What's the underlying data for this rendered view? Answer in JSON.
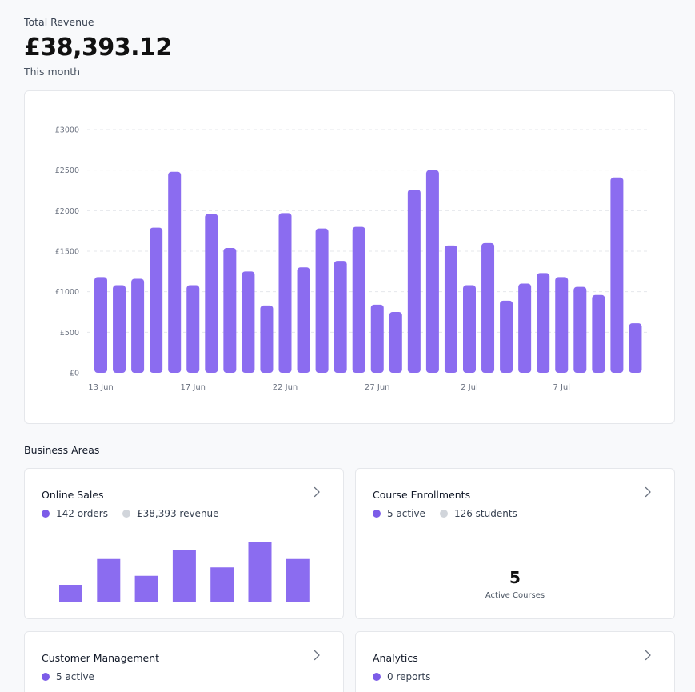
{
  "header": {
    "label": "Total Revenue",
    "amount": "£38,393.12",
    "period": "This month"
  },
  "colors": {
    "accent": "#8b6cf0",
    "dot_secondary": "#d1d5db",
    "background": "#f8f9fb"
  },
  "chart_data": {
    "type": "bar",
    "title": "",
    "xlabel": "",
    "ylabel": "",
    "ylim": [
      0,
      3000
    ],
    "y_ticks": [
      "£0",
      "£500",
      "£1000",
      "£1500",
      "£2000",
      "£2500",
      "£3000"
    ],
    "y_tick_values": [
      0,
      500,
      1000,
      1500,
      2000,
      2500,
      3000
    ],
    "x_tick_labels": [
      "13 Jun",
      "17 Jun",
      "22 Jun",
      "27 Jun",
      "2 Jul",
      "7 Jul"
    ],
    "x_tick_index": [
      0,
      5,
      10,
      15,
      20,
      25
    ],
    "grid": true,
    "values": [
      1180,
      1080,
      1160,
      1790,
      2480,
      1080,
      1960,
      1540,
      1250,
      830,
      1970,
      1300,
      1780,
      1380,
      1800,
      840,
      750,
      2260,
      2500,
      1570,
      1080,
      1600,
      890,
      1100,
      1230,
      1180,
      1060,
      960,
      2410,
      610
    ]
  },
  "business_areas": {
    "title": "Business Areas",
    "cards": [
      {
        "title": "Online Sales",
        "stats": [
          {
            "text": "142 orders",
            "dot": "purple"
          },
          {
            "text": "£38,393 revenue",
            "dot": "gray"
          }
        ],
        "mini_bars": [
          0.28,
          0.71,
          0.43,
          0.86,
          0.57,
          1.0,
          0.71
        ]
      },
      {
        "title": "Course Enrollments",
        "stats": [
          {
            "text": "5 active",
            "dot": "purple"
          },
          {
            "text": "126 students",
            "dot": "gray"
          }
        ],
        "big_number": "5",
        "big_label": "Active Courses"
      },
      {
        "title": "Customer Management",
        "stats": [
          {
            "text": "5 active",
            "dot": "purple"
          }
        ]
      },
      {
        "title": "Analytics",
        "stats": [
          {
            "text": "0 reports",
            "dot": "purple"
          }
        ]
      }
    ]
  }
}
